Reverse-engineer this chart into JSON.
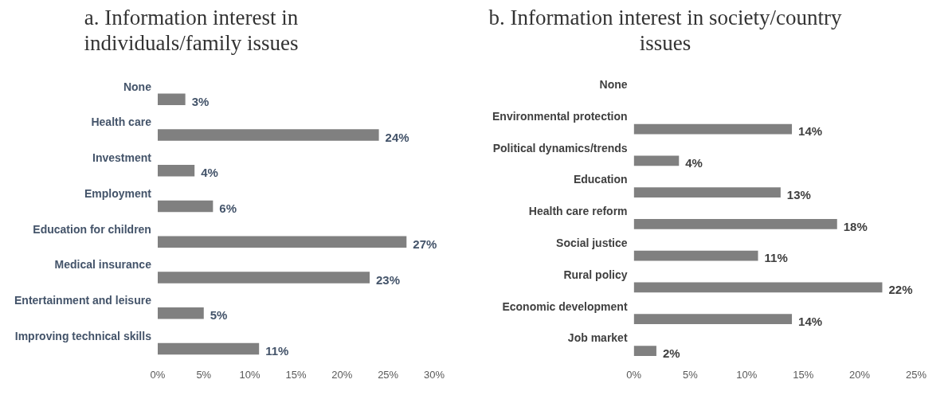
{
  "chart_data": [
    {
      "type": "bar",
      "orientation": "horizontal",
      "title": "a. Information interest in individuals/family issues",
      "categories": [
        "None",
        "Health care",
        "Investment",
        "Employment",
        "Education for children",
        "Medical insurance",
        "Entertainment and leisure",
        "Improving technical skills"
      ],
      "values": [
        3,
        24,
        4,
        6,
        27,
        23,
        5,
        11
      ],
      "color": "#808080",
      "value_labels": [
        "3%",
        "24%",
        "4%",
        "6%",
        "27%",
        "23%",
        "5%",
        "11%"
      ],
      "xlim": [
        0,
        30
      ],
      "xticks": [
        {
          "value": 0,
          "label": "0%"
        },
        {
          "value": 5,
          "label": "5%"
        },
        {
          "value": 10,
          "label": "10%"
        },
        {
          "value": 15,
          "label": "15%"
        },
        {
          "value": 20,
          "label": "20%"
        },
        {
          "value": 25,
          "label": "25%"
        },
        {
          "value": 30,
          "label": "30%"
        }
      ],
      "grid": false,
      "legend": false
    },
    {
      "type": "bar",
      "orientation": "horizontal",
      "title": "b. Information interest in society/country issues",
      "categories": [
        "None",
        "Environmental protection",
        "Political dynamics/trends",
        "Education",
        "Health care reform",
        "Social justice",
        "Rural policy",
        "Economic development",
        "Job market"
      ],
      "values": [
        null,
        14,
        4,
        13,
        18,
        11,
        22,
        14,
        2
      ],
      "color": "#808080",
      "value_labels": [
        null,
        "14%",
        "4%",
        "13%",
        "18%",
        "11%",
        "22%",
        "14%",
        "2%"
      ],
      "xlim": [
        0,
        25
      ],
      "xticks": [
        {
          "value": 0,
          "label": "0%"
        },
        {
          "value": 5,
          "label": "5%"
        },
        {
          "value": 10,
          "label": "10%"
        },
        {
          "value": 15,
          "label": "15%"
        },
        {
          "value": 20,
          "label": "20%"
        },
        {
          "value": 25,
          "label": "25%"
        }
      ],
      "grid": false,
      "legend": false
    }
  ]
}
